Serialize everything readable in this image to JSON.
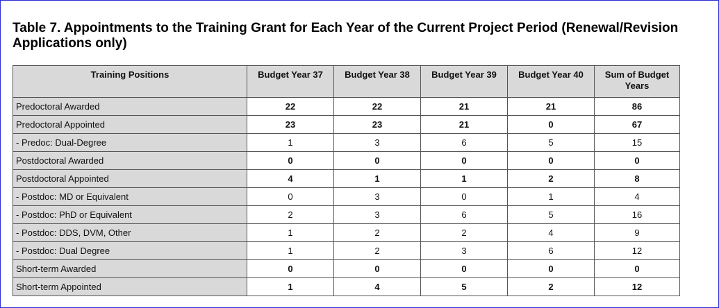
{
  "title": "Table 7. Appointments to the Training Grant for Each Year of the Current Project Period (Renewal/Revision Applications only)",
  "table": {
    "headers": [
      "Training Positions",
      "Budget Year 37",
      "Budget Year 38",
      "Budget Year 39",
      "Budget Year 40",
      "Sum of Budget Years"
    ],
    "rows": [
      {
        "label": "Predoctoral Awarded",
        "values": [
          "22",
          "22",
          "21",
          "21",
          "86"
        ],
        "bold": true
      },
      {
        "label": "Predoctoral Appointed",
        "values": [
          "23",
          "23",
          "21",
          "0",
          "67"
        ],
        "bold": true
      },
      {
        "label": "- Predoc: Dual-Degree",
        "values": [
          "1",
          "3",
          "6",
          "5",
          "15"
        ],
        "bold": false
      },
      {
        "label": "Postdoctoral Awarded",
        "values": [
          "0",
          "0",
          "0",
          "0",
          "0"
        ],
        "bold": true
      },
      {
        "label": "Postdoctoral Appointed",
        "values": [
          "4",
          "1",
          "1",
          "2",
          "8"
        ],
        "bold": true
      },
      {
        "label": "- Postdoc: MD or Equivalent",
        "values": [
          "0",
          "3",
          "0",
          "1",
          "4"
        ],
        "bold": false
      },
      {
        "label": "- Postdoc: PhD or Equivalent",
        "values": [
          "2",
          "3",
          "6",
          "5",
          "16"
        ],
        "bold": false
      },
      {
        "label": "- Postdoc: DDS, DVM, Other",
        "values": [
          "1",
          "2",
          "2",
          "4",
          "9"
        ],
        "bold": false
      },
      {
        "label": "- Postdoc: Dual Degree",
        "values": [
          "1",
          "2",
          "3",
          "6",
          "12"
        ],
        "bold": false
      },
      {
        "label": "Short-term Awarded",
        "values": [
          "0",
          "0",
          "0",
          "0",
          "0"
        ],
        "bold": true
      },
      {
        "label": "Short-term Appointed",
        "values": [
          "1",
          "4",
          "5",
          "2",
          "12"
        ],
        "bold": true
      }
    ]
  }
}
